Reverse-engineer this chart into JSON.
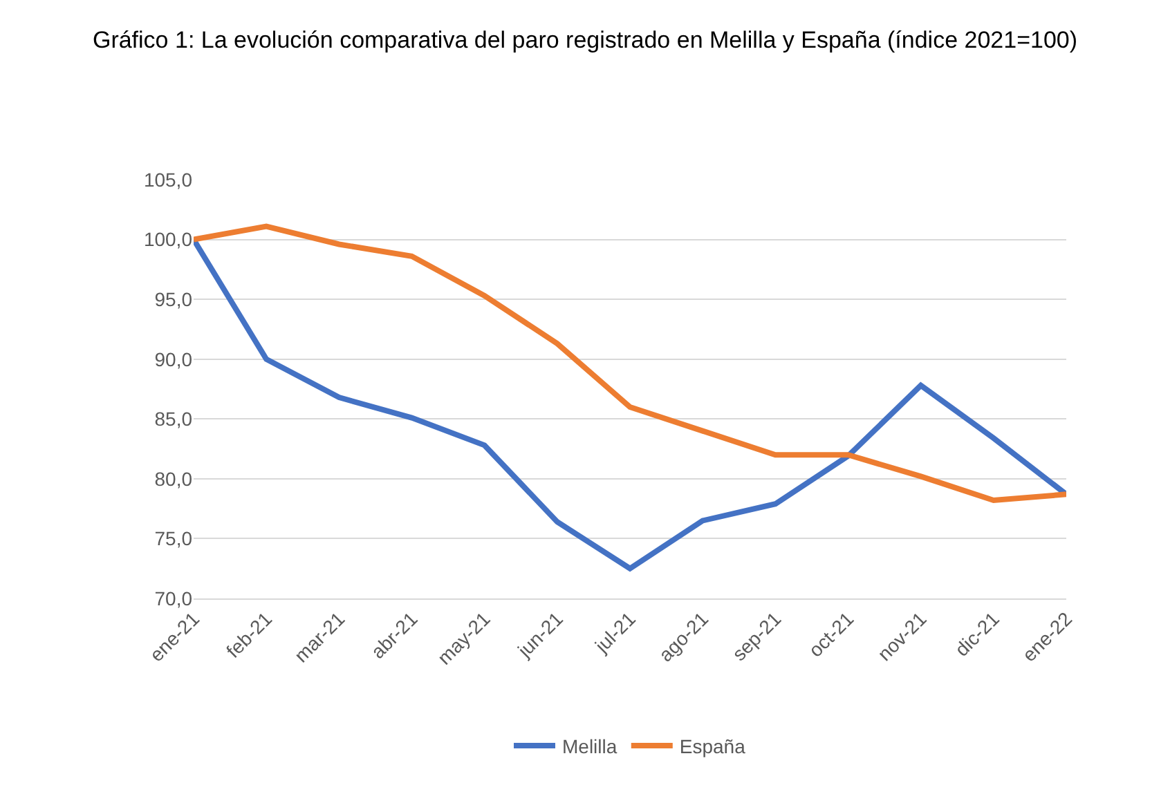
{
  "chart_data": {
    "type": "line",
    "title": "Gráfico 1: La evolución comparativa del paro registrado en Melilla y España (índice 2021=100)",
    "categories": [
      "ene-21",
      "feb-21",
      "mar-21",
      "abr-21",
      "may-21",
      "jun-21",
      "jul-21",
      "ago-21",
      "sep-21",
      "oct-21",
      "nov-21",
      "dic-21",
      "ene-22"
    ],
    "series": [
      {
        "name": "Melilla",
        "color": "#4472c4",
        "values": [
          100,
          90.0,
          86.8,
          85.1,
          82.8,
          76.4,
          72.5,
          76.5,
          77.9,
          81.9,
          87.8,
          83.4,
          78.7
        ]
      },
      {
        "name": "España",
        "color": "#ed7d31",
        "values": [
          100,
          101.1,
          99.6,
          98.6,
          95.3,
          91.3,
          86.0,
          84.0,
          82.0,
          82.0,
          80.2,
          78.2,
          78.7
        ]
      }
    ],
    "ylim": [
      70,
      105
    ],
    "yticks": [
      {
        "value": 70,
        "label": "70,0"
      },
      {
        "value": 75,
        "label": "75,0"
      },
      {
        "value": 80,
        "label": "80,0"
      },
      {
        "value": 85,
        "label": "85,0"
      },
      {
        "value": 90,
        "label": "90,0"
      },
      {
        "value": 95,
        "label": "95,0"
      },
      {
        "value": 100,
        "label": "100,0"
      },
      {
        "value": 105,
        "label": "105,0"
      }
    ],
    "grid": "y",
    "legend": "bottom",
    "marker": "none",
    "line_style": "solid"
  }
}
